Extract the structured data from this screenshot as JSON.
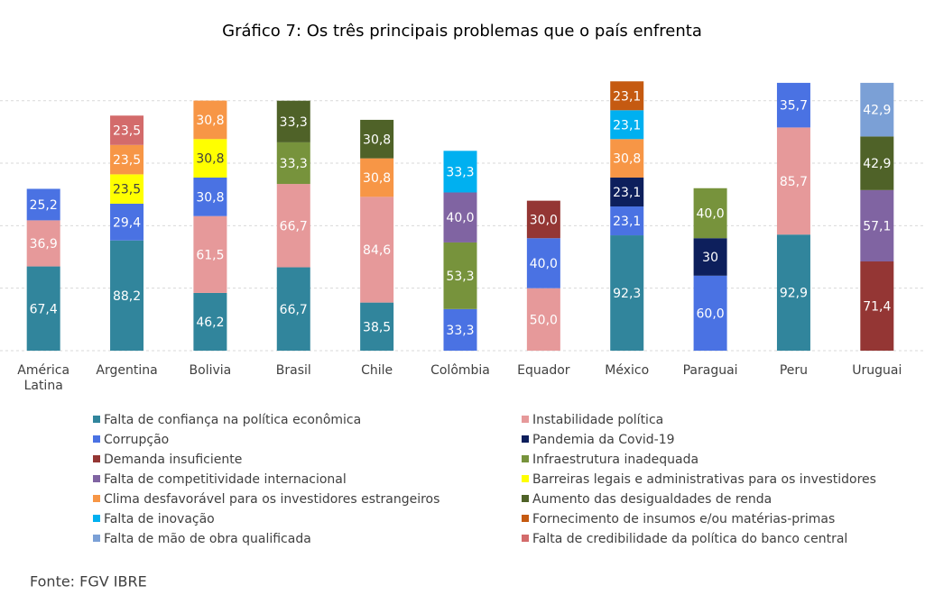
{
  "chart_data": {
    "type": "stacked-bar",
    "title": "Gráfico 7: Os três principais problemas que o país enfrenta",
    "source": "Fonte: FGV IBRE",
    "categories": [
      "América Latina",
      "Argentina",
      "Bolivia",
      "Brasil",
      "Chile",
      "Colômbia",
      "Equador",
      "México",
      "Paraguai",
      "Peru",
      "Uruguai"
    ],
    "ylim": [
      0,
      220
    ],
    "yticks": [
      0,
      50,
      100,
      150,
      200
    ],
    "grid": true,
    "series": [
      {
        "name": "Falta de confiança na política econômica",
        "color": "#31859c",
        "values": [
          67.4,
          88.2,
          46.2,
          66.7,
          38.5,
          null,
          null,
          92.3,
          null,
          92.9,
          null
        ],
        "value_labels": [
          "67,4",
          "88,2",
          "46,2",
          "66,7",
          "38,5",
          null,
          null,
          "92,3",
          null,
          "92,9",
          null
        ]
      },
      {
        "name": "Instabilidade política",
        "color": "#e6999a",
        "values": [
          36.9,
          null,
          61.5,
          66.7,
          84.6,
          null,
          50.0,
          null,
          null,
          85.7,
          null
        ],
        "value_labels": [
          "36,9",
          null,
          "61,5",
          "66,7",
          "84,6",
          null,
          "50,0",
          null,
          null,
          "85,7",
          null
        ]
      },
      {
        "name": "Corrupção",
        "color": "#4a72e3",
        "values": [
          25.2,
          29.4,
          30.8,
          null,
          null,
          33.3,
          40.0,
          23.1,
          60.0,
          35.7,
          null
        ],
        "value_labels": [
          "25,2",
          "29,4",
          "30,8",
          null,
          null,
          "33,3",
          "40,0",
          "23,1",
          "60,0",
          "35,7",
          null
        ]
      },
      {
        "name": "Pandemia da Covid-19",
        "color": "#0d1f5c",
        "values": [
          null,
          null,
          null,
          null,
          null,
          null,
          null,
          23.1,
          30,
          null,
          null
        ],
        "value_labels": [
          null,
          null,
          null,
          null,
          null,
          null,
          null,
          "23,1",
          "30",
          null,
          null
        ]
      },
      {
        "name": "Demanda insuficiente",
        "color": "#943634",
        "values": [
          null,
          null,
          null,
          null,
          null,
          null,
          30.0,
          null,
          null,
          null,
          71.4
        ],
        "value_labels": [
          null,
          null,
          null,
          null,
          null,
          null,
          "30,0",
          null,
          null,
          null,
          "71,4"
        ]
      },
      {
        "name": "Infraestrutura inadequada",
        "color": "#77933c",
        "values": [
          null,
          null,
          null,
          33.3,
          null,
          53.3,
          null,
          null,
          40.0,
          null,
          null
        ],
        "value_labels": [
          null,
          null,
          null,
          "33,3",
          null,
          "53,3",
          null,
          null,
          "40,0",
          null,
          null
        ]
      },
      {
        "name": "Falta de competitividade internacional",
        "color": "#8064a2",
        "values": [
          null,
          null,
          null,
          null,
          null,
          40.0,
          null,
          null,
          null,
          null,
          57.1
        ],
        "value_labels": [
          null,
          null,
          null,
          null,
          null,
          "40,0",
          null,
          null,
          null,
          null,
          "57,1"
        ]
      },
      {
        "name": "Barreiras legais e administrativas para os investidores",
        "color": "#ffff00",
        "values": [
          null,
          23.5,
          30.8,
          null,
          null,
          null,
          null,
          null,
          null,
          null,
          null
        ],
        "value_labels": [
          null,
          "23,5",
          "30,8",
          null,
          null,
          null,
          null,
          null,
          null,
          null,
          null
        ]
      },
      {
        "name": "Clima desfavorável para os investidores estrangeiros",
        "color": "#f79646",
        "values": [
          null,
          23.5,
          30.8,
          null,
          30.8,
          null,
          null,
          30.8,
          null,
          null,
          null
        ],
        "value_labels": [
          null,
          "23,5",
          "30,8",
          null,
          "30,8",
          null,
          null,
          "30,8",
          null,
          null,
          null
        ]
      },
      {
        "name": "Aumento das desigualdades de renda",
        "color": "#4f6228",
        "values": [
          null,
          null,
          null,
          33.3,
          30.8,
          null,
          null,
          null,
          null,
          null,
          42.9
        ],
        "value_labels": [
          null,
          null,
          null,
          "33,3",
          "30,8",
          null,
          null,
          null,
          null,
          null,
          "42,9"
        ]
      },
      {
        "name": "Falta de inovação",
        "color": "#00b0f0",
        "values": [
          null,
          null,
          null,
          null,
          null,
          33.3,
          null,
          23.1,
          null,
          null,
          null
        ],
        "value_labels": [
          null,
          null,
          null,
          null,
          null,
          "33,3",
          null,
          "23,1",
          null,
          null,
          null
        ]
      },
      {
        "name": "Fornecimento de insumos e/ou matérias-primas",
        "color": "#c55a11",
        "values": [
          null,
          null,
          null,
          null,
          null,
          null,
          null,
          23.1,
          null,
          null,
          null
        ],
        "value_labels": [
          null,
          null,
          null,
          null,
          null,
          null,
          null,
          "23,1",
          null,
          null,
          null
        ]
      },
      {
        "name": "Falta de mão de obra qualificada",
        "color": "#7ba0d6",
        "values": [
          null,
          null,
          null,
          null,
          null,
          null,
          null,
          null,
          null,
          null,
          42.9
        ],
        "value_labels": [
          null,
          null,
          null,
          null,
          null,
          null,
          null,
          null,
          null,
          null,
          "42,9"
        ]
      },
      {
        "name": "Falta de credibilidade da política do banco central",
        "color": "#d36b6b",
        "values": [
          null,
          23.5,
          null,
          null,
          null,
          null,
          null,
          null,
          null,
          null,
          null
        ],
        "value_labels": [
          null,
          "23,5",
          null,
          null,
          null,
          null,
          null,
          null,
          null,
          null,
          null
        ]
      }
    ]
  }
}
